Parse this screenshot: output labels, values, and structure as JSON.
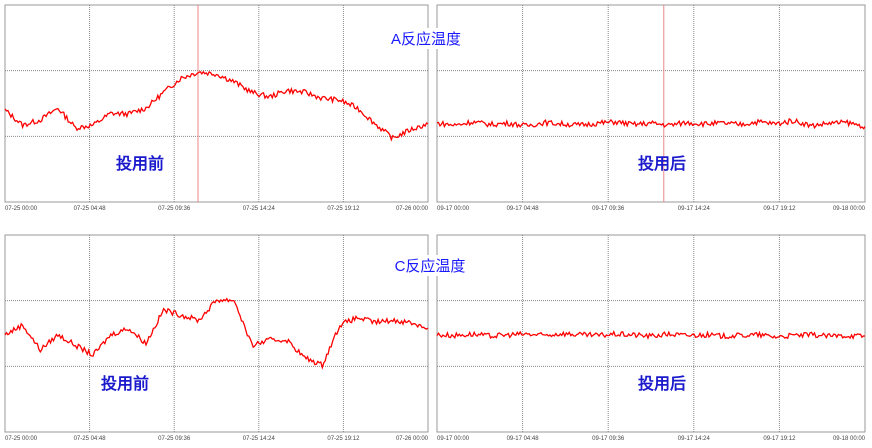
{
  "chart_data": [
    {
      "type": "line",
      "title": "A反应温度",
      "annotation": "投用前",
      "x_ticks": [
        "07-25 00:00",
        "07-25 04:48",
        "07-25 09:36",
        "07-25 14:24",
        "07-25 19:12",
        "07-26 00:00"
      ],
      "xlim": [
        "07-25 00:00",
        "07-26 00:00"
      ],
      "ylim": [
        0,
        3
      ],
      "y_tick_labels": "none",
      "grid": true,
      "cursor_time": "07-25 10:57",
      "color": "#ff0000",
      "values": [
        1.4,
        1.17,
        1.25,
        1.43,
        1.13,
        1.17,
        1.35,
        1.34,
        1.43,
        1.67,
        1.89,
        1.98,
        1.95,
        1.83,
        1.67,
        1.6,
        1.7,
        1.67,
        1.58,
        1.55,
        1.43,
        1.19,
        0.97,
        1.1,
        1.19
      ]
    },
    {
      "type": "line",
      "title": "",
      "annotation": "投用后",
      "x_ticks": [
        "09-17 00:00",
        "09-17 04:48",
        "09-17 09:36",
        "09-17 14:24",
        "09-17 19:12",
        "09-18 00:00"
      ],
      "xlim": [
        "09-17 00:00",
        "09-18 00:00"
      ],
      "ylim": [
        0,
        3
      ],
      "y_tick_labels": "none",
      "grid": true,
      "cursor_time": "09-17 12:43",
      "color": "#ff0000",
      "values": [
        1.2,
        1.17,
        1.22,
        1.18,
        1.2,
        1.16,
        1.21,
        1.19,
        1.17,
        1.2,
        1.22,
        1.18,
        1.2,
        1.17,
        1.21,
        1.19,
        1.2,
        1.18,
        1.22,
        1.19,
        1.24,
        1.16,
        1.2,
        1.21,
        1.15
      ]
    },
    {
      "type": "line",
      "title": "C反应温度",
      "annotation": "投用前",
      "x_ticks": [
        "07-25 00:00",
        "07-25 04:48",
        "07-25 09:36",
        "07-25 14:24",
        "07-25 19:12",
        "07-26 00:00"
      ],
      "xlim": [
        "07-25 00:00",
        "07-26 00:00"
      ],
      "ylim": [
        0,
        3
      ],
      "y_tick_labels": "none",
      "grid": true,
      "color": "#ff0000",
      "values": [
        1.48,
        1.63,
        1.25,
        1.48,
        1.32,
        1.17,
        1.48,
        1.58,
        1.35,
        1.86,
        1.78,
        1.7,
        2.01,
        2.01,
        1.32,
        1.4,
        1.4,
        1.13,
        1.02,
        1.63,
        1.74,
        1.67,
        1.7,
        1.67,
        1.58
      ]
    },
    {
      "type": "line",
      "title": "",
      "annotation": "投用后",
      "x_ticks": [
        "09-17 00:00",
        "09-17 04:48",
        "09-17 09:36",
        "09-17 14:24",
        "09-17 19:12",
        "09-18 00:00"
      ],
      "xlim": [
        "09-17 00:00",
        "09-18 00:00"
      ],
      "ylim": [
        0,
        3
      ],
      "y_tick_labels": "none",
      "grid": true,
      "color": "#ff0000",
      "values": [
        1.48,
        1.47,
        1.49,
        1.46,
        1.48,
        1.49,
        1.47,
        1.5,
        1.48,
        1.47,
        1.49,
        1.48,
        1.46,
        1.49,
        1.47,
        1.48,
        1.46,
        1.47,
        1.48,
        1.45,
        1.47,
        1.48,
        1.46,
        1.47,
        1.46
      ]
    }
  ]
}
